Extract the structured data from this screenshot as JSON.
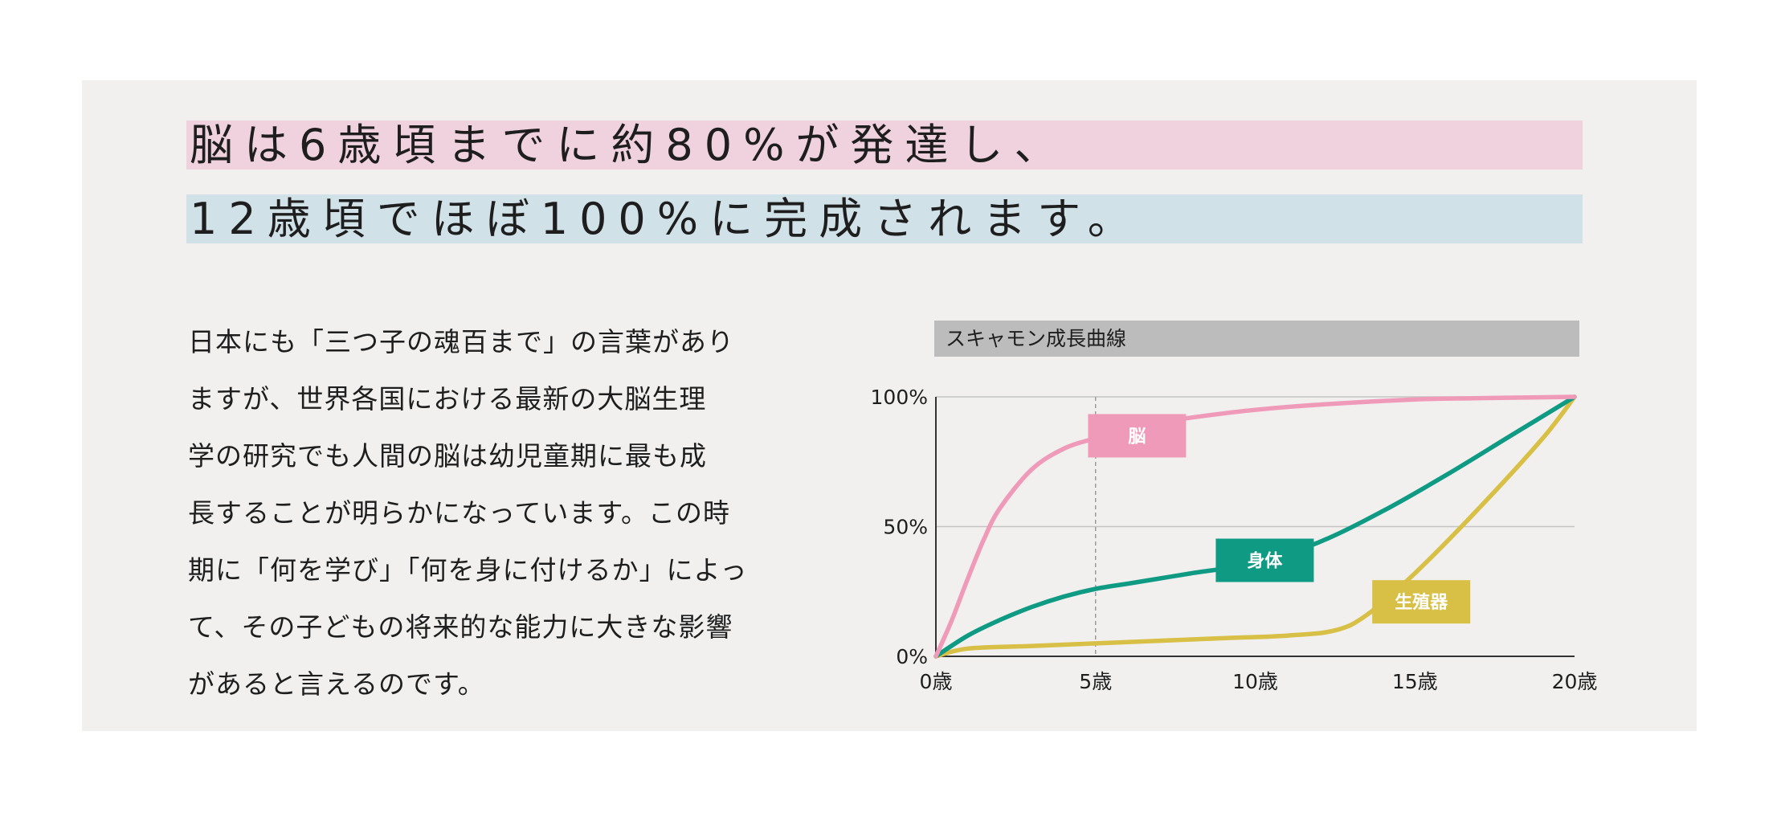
{
  "headline": {
    "line1": "脳は6歳頃までに約80%が発達し、",
    "line2": "12歳頃でほぼ100%に完成されます。"
  },
  "body_lines": [
    "日本にも「三つ子の魂百まで」の言葉があり",
    "ますが、世界各国における最新の大脳生理",
    "学の研究でも人間の脳は幼児童期に最も成",
    "長することが明らかになっています。この時",
    "期に「何を学び」「何を身に付けるか」によっ",
    "て、その子どもの将来的な能力に大きな影響",
    "があると言えるのです。"
  ],
  "colors": {
    "panel_bg": "#f1f0ef",
    "line1_highlight": "#efd2de",
    "line2_highlight": "#d1e1e8",
    "brain": "#f09ab9",
    "body": "#0f9a84",
    "reproductive": "#d8bf45",
    "title_bar": "#bcbcbc"
  },
  "chart_data": {
    "type": "line",
    "title": "スキャモン成長曲線",
    "x_tick_labels": [
      "0歳",
      "5歳",
      "10歳",
      "15歳",
      "20歳"
    ],
    "x_ticks": [
      0,
      5,
      10,
      15,
      20
    ],
    "y_tick_labels": [
      "0%",
      "50%",
      "100%"
    ],
    "y_ticks": [
      0,
      50,
      100
    ],
    "xlim": [
      0,
      20
    ],
    "ylim": [
      0,
      100
    ],
    "grid": true,
    "reference_line_x": 5,
    "series": [
      {
        "name": "脳",
        "color": "#f09ab9",
        "label_at": [
          6.3,
          85
        ],
        "points": [
          [
            0,
            0
          ],
          [
            0.5,
            14
          ],
          [
            1,
            30
          ],
          [
            1.5,
            45
          ],
          [
            2,
            57
          ],
          [
            3,
            72
          ],
          [
            4,
            80
          ],
          [
            5,
            84
          ],
          [
            6,
            87
          ],
          [
            7,
            90
          ],
          [
            8,
            92
          ],
          [
            10,
            95
          ],
          [
            12,
            97
          ],
          [
            15,
            99
          ],
          [
            17,
            99.5
          ],
          [
            20,
            100
          ]
        ]
      },
      {
        "name": "身体",
        "color": "#0f9a84",
        "label_at": [
          10.3,
          37
        ],
        "points": [
          [
            0,
            0
          ],
          [
            1,
            8
          ],
          [
            2,
            14
          ],
          [
            3,
            19
          ],
          [
            4,
            23
          ],
          [
            5,
            26
          ],
          [
            6,
            28
          ],
          [
            7,
            30
          ],
          [
            8,
            32
          ],
          [
            10,
            36
          ],
          [
            12,
            44
          ],
          [
            14,
            56
          ],
          [
            16,
            70
          ],
          [
            18,
            85
          ],
          [
            20,
            100
          ]
        ]
      },
      {
        "name": "生殖器",
        "color": "#d8bf45",
        "label_at": [
          15.2,
          21
        ],
        "points": [
          [
            0,
            0
          ],
          [
            1,
            3
          ],
          [
            3,
            4
          ],
          [
            5,
            5
          ],
          [
            7,
            6
          ],
          [
            9,
            7
          ],
          [
            11,
            8
          ],
          [
            12.5,
            10
          ],
          [
            13.5,
            16
          ],
          [
            15,
            32
          ],
          [
            17,
            57
          ],
          [
            19,
            84
          ],
          [
            20,
            100
          ]
        ]
      }
    ]
  }
}
